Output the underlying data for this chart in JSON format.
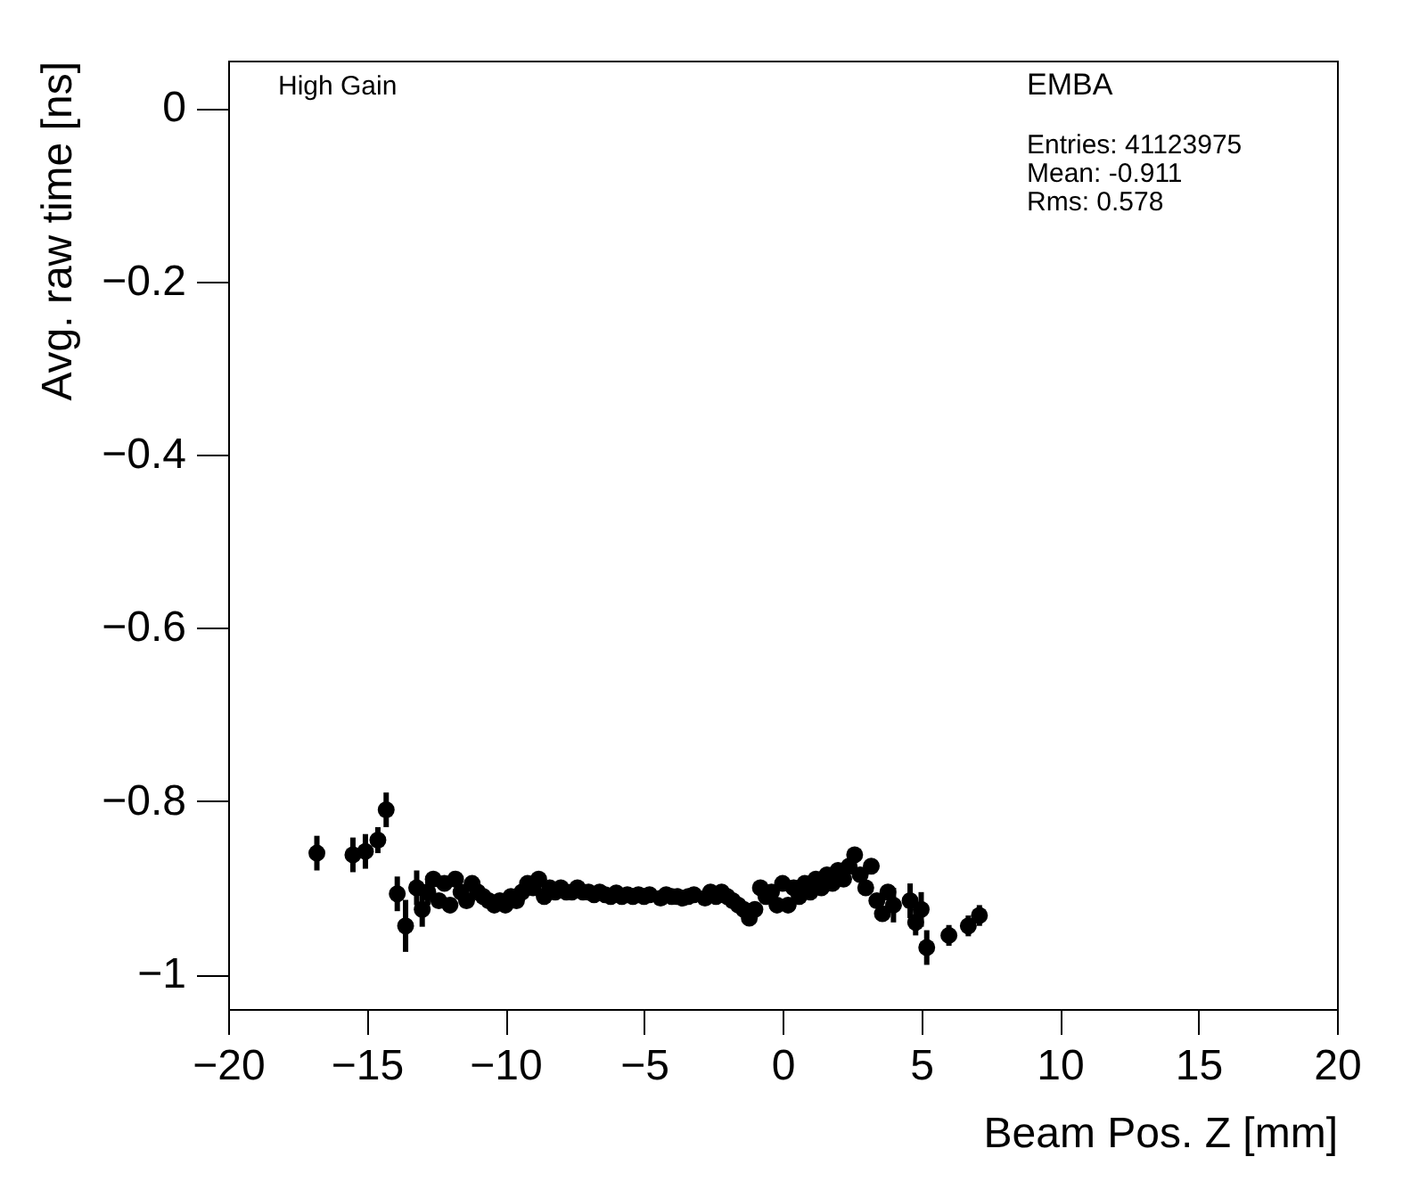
{
  "chart_data": {
    "type": "scatter",
    "xlabel": "Beam Pos. Z [mm]",
    "ylabel": "Avg. raw time [ns]",
    "annotations": [
      "High Gain",
      "EMBA",
      "Entries: 41123975",
      "Mean: -0.911",
      "Rms: 0.578"
    ],
    "xlim": [
      -20,
      20
    ],
    "ylim": [
      -1.04,
      0.055
    ],
    "xticks": [
      -20,
      -15,
      -10,
      -5,
      0,
      5,
      10,
      15,
      20
    ],
    "yticks": [
      {
        "value": -1,
        "label": "−1"
      },
      {
        "value": -0.8,
        "label": "−0.8"
      },
      {
        "value": -0.6,
        "label": "−0.6"
      },
      {
        "value": -0.4,
        "label": "−0.4"
      },
      {
        "value": -0.2,
        "label": "−0.2"
      },
      {
        "value": 0,
        "label": "0"
      }
    ],
    "grid": false,
    "marker": "circle",
    "series": [
      {
        "color": "#000000",
        "x": [
          -16.8,
          -15.5,
          -15.05,
          -14.6,
          -14.3,
          -13.9,
          -13.6,
          -13.2,
          -13.0,
          -12.8,
          -12.6,
          -12.4,
          -12.2,
          -12.0,
          -11.8,
          -11.6,
          -11.4,
          -11.2,
          -11.0,
          -10.8,
          -10.6,
          -10.4,
          -10.2,
          -10.0,
          -9.8,
          -9.6,
          -9.4,
          -9.2,
          -9.0,
          -8.8,
          -8.6,
          -8.4,
          -8.2,
          -8.0,
          -7.8,
          -7.6,
          -7.4,
          -7.2,
          -7.0,
          -6.8,
          -6.6,
          -6.4,
          -6.2,
          -6.0,
          -5.8,
          -5.6,
          -5.4,
          -5.2,
          -5.0,
          -4.8,
          -4.4,
          -4.2,
          -4.0,
          -3.8,
          -3.6,
          -3.4,
          -3.2,
          -2.8,
          -2.6,
          -2.4,
          -2.2,
          -2.0,
          -1.8,
          -1.6,
          -1.4,
          -1.2,
          -1.0,
          -0.8,
          -0.6,
          -0.4,
          -0.2,
          0.0,
          0.2,
          0.4,
          0.6,
          0.8,
          1.0,
          1.2,
          1.4,
          1.6,
          1.8,
          2.0,
          2.2,
          2.4,
          2.6,
          2.8,
          3.0,
          3.2,
          3.4,
          3.6,
          3.8,
          4.0,
          4.6,
          4.8,
          5.0,
          5.2,
          6.0,
          6.7,
          7.1
        ],
        "values": [
          -0.86,
          -0.862,
          -0.858,
          -0.845,
          -0.81,
          -0.907,
          -0.944,
          -0.9,
          -0.925,
          -0.905,
          -0.89,
          -0.915,
          -0.895,
          -0.92,
          -0.89,
          -0.905,
          -0.915,
          -0.895,
          -0.905,
          -0.91,
          -0.915,
          -0.92,
          -0.915,
          -0.92,
          -0.91,
          -0.915,
          -0.905,
          -0.895,
          -0.9,
          -0.89,
          -0.91,
          -0.9,
          -0.905,
          -0.9,
          -0.905,
          -0.905,
          -0.9,
          -0.905,
          -0.905,
          -0.908,
          -0.905,
          -0.908,
          -0.91,
          -0.906,
          -0.91,
          -0.908,
          -0.91,
          -0.908,
          -0.91,
          -0.908,
          -0.912,
          -0.908,
          -0.91,
          -0.91,
          -0.912,
          -0.91,
          -0.908,
          -0.912,
          -0.905,
          -0.91,
          -0.905,
          -0.91,
          -0.915,
          -0.92,
          -0.925,
          -0.935,
          -0.925,
          -0.9,
          -0.91,
          -0.905,
          -0.92,
          -0.895,
          -0.92,
          -0.9,
          -0.91,
          -0.895,
          -0.905,
          -0.89,
          -0.9,
          -0.885,
          -0.895,
          -0.88,
          -0.89,
          -0.875,
          -0.862,
          -0.885,
          -0.9,
          -0.875,
          -0.915,
          -0.93,
          -0.905,
          -0.92,
          -0.915,
          -0.94,
          -0.925,
          -0.969,
          -0.955,
          -0.944,
          -0.932
        ],
        "errors": [
          0.02,
          0.02,
          0.02,
          0.015,
          0.02,
          0.02,
          0.03,
          0.02,
          0.02,
          0.015,
          null,
          null,
          null,
          null,
          null,
          null,
          null,
          null,
          null,
          null,
          null,
          null,
          null,
          null,
          null,
          null,
          null,
          null,
          null,
          null,
          null,
          null,
          null,
          null,
          null,
          null,
          null,
          null,
          null,
          null,
          null,
          null,
          null,
          null,
          null,
          null,
          null,
          null,
          null,
          null,
          null,
          null,
          null,
          null,
          null,
          null,
          null,
          null,
          null,
          null,
          null,
          null,
          null,
          null,
          null,
          null,
          null,
          null,
          null,
          null,
          null,
          null,
          null,
          null,
          null,
          null,
          null,
          null,
          null,
          null,
          null,
          null,
          null,
          null,
          null,
          null,
          null,
          null,
          null,
          null,
          null,
          0.02,
          0.02,
          0.015,
          0.02,
          0.02,
          0.012,
          0.012,
          0.012
        ]
      }
    ]
  }
}
